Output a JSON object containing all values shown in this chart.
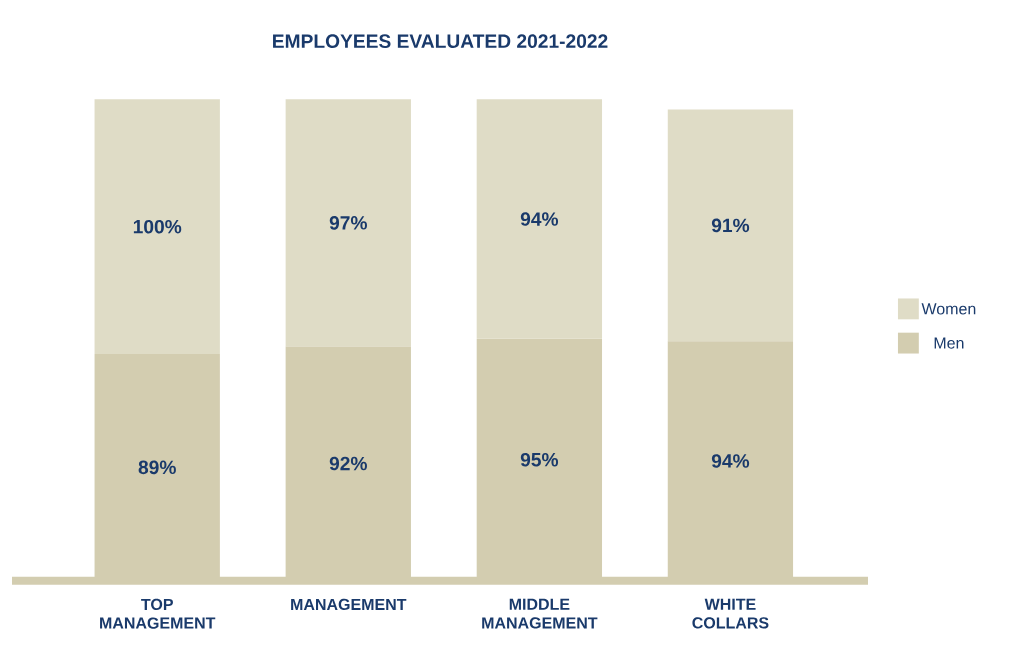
{
  "chart_data": {
    "type": "bar",
    "title": "EMPLOYEES EVALUATED 2021-2022",
    "stacked": true,
    "legend": "right",
    "categories": [
      "TOP MANAGEMENT",
      "MANAGEMENT",
      "MIDDLE MANAGEMENT",
      "WHITE COLLARS"
    ],
    "series": [
      {
        "name": "Men",
        "color": "#d3cdb0",
        "values": [
          89,
          92,
          95,
          94
        ],
        "value_labels": [
          "89%",
          "92%",
          "95%",
          "94%"
        ]
      },
      {
        "name": "Women",
        "color": "#dfdcc6",
        "values": [
          100,
          97,
          94,
          91
        ],
        "value_labels": [
          "100%",
          "97%",
          "94%",
          "91%"
        ]
      }
    ]
  }
}
